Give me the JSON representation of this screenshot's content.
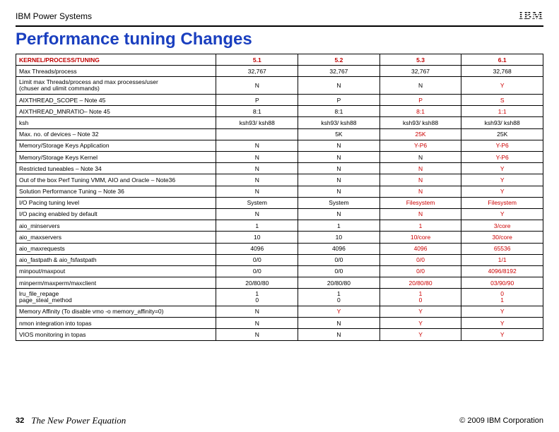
{
  "header_label": "IBM Power Systems",
  "logo_text": "IBM",
  "main_title": "Performance tuning Changes",
  "main_title_color": "#1a3fbf",
  "table": {
    "columns": [
      "KERNEL/PROCESS/TUNING",
      "5.1",
      "5.2",
      "5.3",
      "6.1"
    ],
    "header_color": "#c00000",
    "rows": [
      {
        "c": [
          "Max Threads/process",
          "32,767",
          "32,767",
          "32,767",
          "32,768"
        ],
        "red": []
      },
      {
        "c": [
          "Limit max Threads/process and max processes/user\n(chuser and ulimit commands)",
          "N",
          "N",
          "N",
          "Y"
        ],
        "red": [
          4
        ]
      },
      {
        "c": [
          "AIXTHREAD_SCOPE – Note 45",
          "P",
          "P",
          "P",
          "S"
        ],
        "red": [
          3,
          4
        ]
      },
      {
        "c": [
          "AIXTHREAD_MNRATIO– Note 45",
          "8:1",
          "8:1",
          "8:1",
          "1:1"
        ],
        "red": [
          3,
          4
        ]
      },
      {
        "c": [
          "ksh",
          "ksh93/ ksh88",
          "ksh93/ ksh88",
          "ksh93/ ksh88",
          "ksh93/ ksh88"
        ],
        "red": []
      },
      {
        "c": [
          "Max. no. of devices – Note 32",
          "",
          "5K",
          "25K",
          "25K"
        ],
        "red": [
          3
        ]
      },
      {
        "c": [
          "Memory/Storage Keys Application",
          "N",
          "N",
          "Y-P6",
          "Y-P6"
        ],
        "red": [
          3,
          4
        ]
      },
      {
        "c": [
          "Memory/Storage Keys Kernel",
          "N",
          "N",
          "N",
          "Y-P6"
        ],
        "red": [
          4
        ]
      },
      {
        "c": [
          "Restricted tuneables – Note 34",
          "N",
          "N",
          "N",
          "Y"
        ],
        "red": [
          3,
          4
        ]
      },
      {
        "c": [
          "Out of the box Perf Tuning VMM, AIO and Oracle – Note36",
          "N",
          "N",
          "N",
          "Y"
        ],
        "red": [
          3,
          4
        ]
      },
      {
        "c": [
          "Solution Performance Tuning – Note 36",
          "N",
          "N",
          "N",
          "Y"
        ],
        "red": [
          3,
          4
        ]
      },
      {
        "c": [
          "I/O Pacing tuning level",
          "System",
          "System",
          "Filesystem",
          "Filesystem"
        ],
        "red": [
          3,
          4
        ]
      },
      {
        "c": [
          "I/O pacing enabled by default",
          "N",
          "N",
          "N",
          "Y"
        ],
        "red": [
          3,
          4
        ]
      },
      {
        "c": [
          "aio_minservers",
          "1",
          "1",
          "1",
          "3/core"
        ],
        "red": [
          3,
          4
        ]
      },
      {
        "c": [
          "aio_maxservers",
          "10",
          "10",
          "10/core",
          "30/core"
        ],
        "red": [
          3,
          4
        ]
      },
      {
        "c": [
          "aio_maxrequests",
          "4096",
          "4096",
          "4096",
          "65536"
        ],
        "red": [
          3,
          4
        ]
      },
      {
        "c": [
          "aio_fastpath & aio_fsfastpath",
          "0/0",
          "0/0",
          "0/0",
          "1/1"
        ],
        "red": [
          3,
          4
        ]
      },
      {
        "c": [
          "minpout/maxpout",
          "0/0",
          "0/0",
          "0/0",
          "4096/8192"
        ],
        "red": [
          3,
          4
        ]
      },
      {
        "c": [
          "minperm/maxperm/maxclient",
          "20/80/80",
          "20/80/80",
          "20/80/80",
          "03/90/90"
        ],
        "red": [
          3,
          4
        ]
      },
      {
        "c": [
          "lru_file_repage\npage_steal_method",
          "1\n0",
          "1\n0",
          "1\n0",
          "0\n1"
        ],
        "red": [
          3,
          4
        ]
      },
      {
        "c": [
          "Memory Affinity (To disable vmo -o memory_affinity=0)",
          "N",
          "Y",
          "Y",
          "Y"
        ],
        "red": [
          2,
          3,
          4
        ]
      },
      {
        "c": [
          "nmon integration into topas",
          "N",
          "N",
          "Y",
          "Y"
        ],
        "red": [
          3,
          4
        ]
      },
      {
        "c": [
          "VIOS  monitoring in topas",
          "N",
          "N",
          "Y",
          "Y"
        ],
        "red": [
          3,
          4
        ]
      }
    ]
  },
  "footer": {
    "page": "32",
    "tagline": "The New Power Equation",
    "copyright": "© 2009 IBM Corporation"
  }
}
